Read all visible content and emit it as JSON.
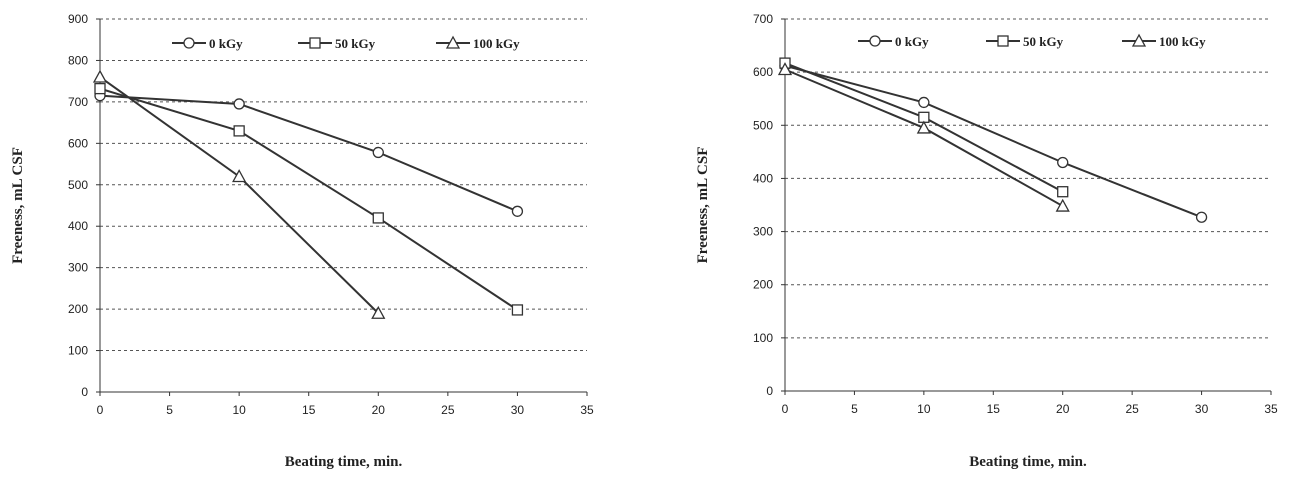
{
  "chart_data": [
    {
      "type": "line",
      "title": "",
      "xlabel": "Beating time, min.",
      "ylabel": "Freeness, mL CSF",
      "xlim": [
        0,
        35
      ],
      "ylim": [
        0,
        900
      ],
      "xticks": [
        "0",
        "5",
        "10",
        "15",
        "20",
        "25",
        "30",
        "35"
      ],
      "yticks": [
        "0",
        "100",
        "200",
        "300",
        "400",
        "500",
        "600",
        "700",
        "800",
        "900"
      ],
      "grid": "horizontal dashed",
      "legend_position": "top",
      "series": [
        {
          "name": "0 kGy",
          "marker": "circle",
          "x": [
            0,
            10,
            20,
            30
          ],
          "y": [
            715,
            695,
            578,
            436
          ]
        },
        {
          "name": "50 kGy",
          "marker": "square",
          "x": [
            0,
            10,
            20,
            30
          ],
          "y": [
            732,
            630,
            420,
            198
          ]
        },
        {
          "name": "100 kGy",
          "marker": "triangle",
          "x": [
            0,
            10,
            20
          ],
          "y": [
            760,
            520,
            190
          ]
        }
      ]
    },
    {
      "type": "line",
      "title": "",
      "xlabel": "Beating time, min.",
      "ylabel": "Freeness, mL CSF",
      "xlim": [
        0,
        35
      ],
      "ylim": [
        0,
        700
      ],
      "xticks": [
        "0",
        "5",
        "10",
        "15",
        "20",
        "25",
        "30",
        "35"
      ],
      "yticks": [
        "0",
        "100",
        "200",
        "300",
        "400",
        "500",
        "600",
        "700"
      ],
      "grid": "horizontal dashed",
      "legend_position": "top",
      "series": [
        {
          "name": "0 kGy",
          "marker": "circle",
          "x": [
            0,
            10,
            20,
            30
          ],
          "y": [
            612,
            543,
            430,
            327
          ]
        },
        {
          "name": "50 kGy",
          "marker": "square",
          "x": [
            0,
            10,
            20
          ],
          "y": [
            617,
            515,
            375
          ]
        },
        {
          "name": "100 kGy",
          "marker": "triangle",
          "x": [
            0,
            10,
            20
          ],
          "y": [
            605,
            495,
            348
          ]
        }
      ]
    }
  ]
}
